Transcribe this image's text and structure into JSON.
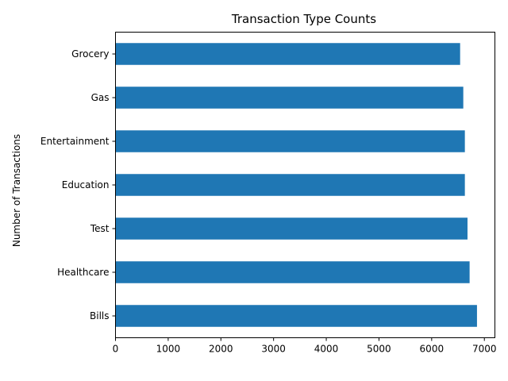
{
  "chart_data": {
    "type": "bar",
    "orientation": "horizontal",
    "title": "Transaction Type Counts",
    "xlabel": "",
    "ylabel": "Number of Transactions",
    "categories": [
      "Bills",
      "Healthcare",
      "Test",
      "Education",
      "Entertainment",
      "Gas",
      "Grocery"
    ],
    "values": [
      6860,
      6720,
      6680,
      6630,
      6630,
      6600,
      6540
    ],
    "xlim": [
      0,
      7200
    ],
    "xticks": [
      0,
      1000,
      2000,
      3000,
      4000,
      5000,
      6000,
      7000
    ],
    "bar_color": "#1f77b4",
    "grid": false,
    "legend": "none"
  }
}
